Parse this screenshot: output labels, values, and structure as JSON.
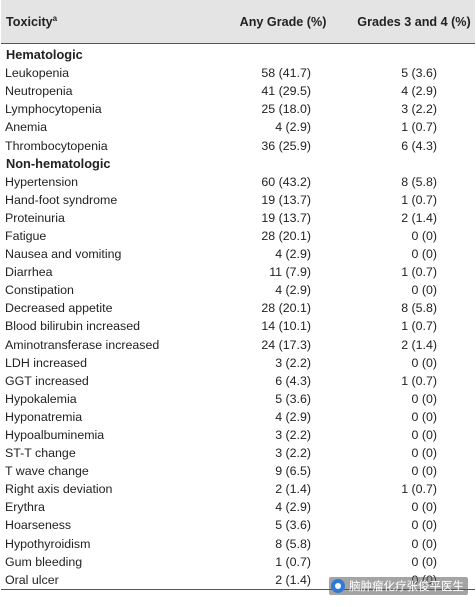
{
  "header": {
    "col1": "Toxicity",
    "col1_sup": "a",
    "col2": "Any Grade (%)",
    "col3": "Grades 3 and 4 (%)"
  },
  "sections": [
    {
      "title": "Hematologic",
      "rows": [
        {
          "name": "Leukopenia",
          "any": "58 (41.7)",
          "g34": "5 (3.6)"
        },
        {
          "name": "Neutropenia",
          "any": "41 (29.5)",
          "g34": "4 (2.9)"
        },
        {
          "name": "Lymphocytopenia",
          "any": "25 (18.0)",
          "g34": "3 (2.2)"
        },
        {
          "name": "Anemia",
          "any": "4 (2.9)",
          "g34": "1 (0.7)"
        },
        {
          "name": "Thrombocytopenia",
          "any": "36 (25.9)",
          "g34": "6 (4.3)"
        }
      ]
    },
    {
      "title": "Non-hematologic",
      "rows": [
        {
          "name": "Hypertension",
          "any": "60 (43.2)",
          "g34": "8 (5.8)"
        },
        {
          "name": "Hand-foot syndrome",
          "any": "19 (13.7)",
          "g34": "1 (0.7)"
        },
        {
          "name": "Proteinuria",
          "any": "19 (13.7)",
          "g34": "2 (1.4)"
        },
        {
          "name": "Fatigue",
          "any": "28 (20.1)",
          "g34": "0 (0)"
        },
        {
          "name": "Nausea and vomiting",
          "any": "4 (2.9)",
          "g34": "0 (0)"
        },
        {
          "name": "Diarrhea",
          "any": "11 (7.9)",
          "g34": "1 (0.7)"
        },
        {
          "name": "Constipation",
          "any": "4 (2.9)",
          "g34": "0 (0)"
        },
        {
          "name": "Decreased appetite",
          "any": "28 (20.1)",
          "g34": "8 (5.8)"
        },
        {
          "name": "Blood bilirubin increased",
          "any": "14 (10.1)",
          "g34": "1 (0.7)"
        },
        {
          "name": "Aminotransferase increased",
          "any": "24 (17.3)",
          "g34": "2 (1.4)"
        },
        {
          "name": "LDH increased",
          "any": "3 (2.2)",
          "g34": "0 (0)"
        },
        {
          "name": "GGT increased",
          "any": "6 (4.3)",
          "g34": "1 (0.7)"
        },
        {
          "name": "Hypokalemia",
          "any": "5 (3.6)",
          "g34": "0 (0)"
        },
        {
          "name": "Hyponatremia",
          "any": "4 (2.9)",
          "g34": "0 (0)"
        },
        {
          "name": "Hypoalbuminemia",
          "any": "3 (2.2)",
          "g34": "0 (0)"
        },
        {
          "name": "ST-T change",
          "any": "3 (2.2)",
          "g34": "0 (0)"
        },
        {
          "name": "T wave change",
          "any": "9 (6.5)",
          "g34": "0 (0)"
        },
        {
          "name": "Right axis deviation",
          "any": "2 (1.4)",
          "g34": "1 (0.7)"
        },
        {
          "name": "Erythra",
          "any": "4 (2.9)",
          "g34": "0 (0)"
        },
        {
          "name": "Hoarseness",
          "any": "5 (3.6)",
          "g34": "0 (0)"
        },
        {
          "name": "Hypothyroidism",
          "any": "8 (5.8)",
          "g34": "0 (0)"
        },
        {
          "name": "Gum bleeding",
          "any": "1 (0.7)",
          "g34": "0 (0)"
        },
        {
          "name": "Oral ulcer",
          "any": "2 (1.4)",
          "g34": "0 (0)"
        }
      ]
    }
  ],
  "watermark": {
    "text": "脑肿瘤化疗张俊平医生",
    "icon": "wechat-logo-icon",
    "color": "#2e7bd6"
  }
}
